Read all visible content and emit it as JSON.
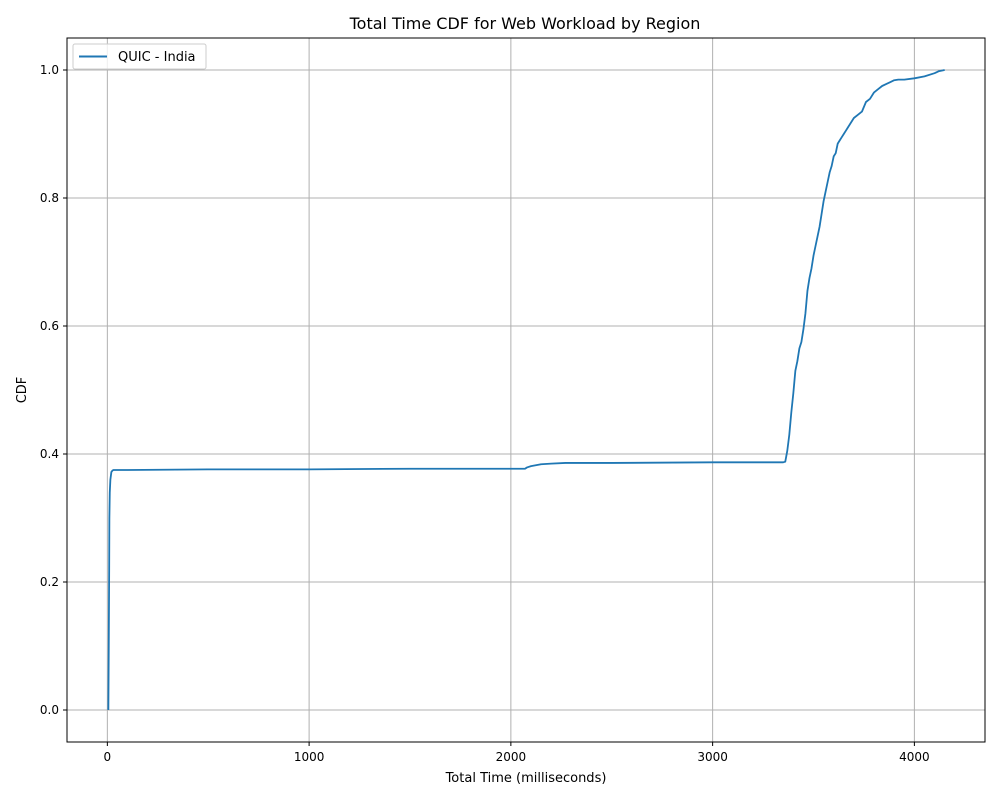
{
  "chart_data": {
    "type": "line",
    "title": "Total Time CDF for Web Workload by Region",
    "xlabel": "Total Time (milliseconds)",
    "ylabel": "CDF",
    "xlim": [
      -200,
      4350
    ],
    "ylim": [
      -0.05,
      1.05
    ],
    "xticks": [
      0,
      1000,
      2000,
      3000,
      4000
    ],
    "xtick_labels": [
      "0",
      "1000",
      "2000",
      "3000",
      "4000"
    ],
    "yticks": [
      0.0,
      0.2,
      0.4,
      0.6,
      0.8,
      1.0
    ],
    "ytick_labels": [
      "0.0",
      "0.2",
      "0.4",
      "0.6",
      "0.8",
      "1.0"
    ],
    "grid": true,
    "legend_position": "top-left",
    "series": [
      {
        "name": "QUIC - India",
        "color": "#1f77b4",
        "x": [
          5,
          7,
          9,
          10,
          12,
          15,
          20,
          25,
          30,
          100,
          500,
          1000,
          1500,
          2000,
          2070,
          2080,
          2100,
          2150,
          2200,
          2270,
          2500,
          3000,
          3350,
          3360,
          3370,
          3380,
          3390,
          3400,
          3410,
          3420,
          3430,
          3440,
          3450,
          3460,
          3470,
          3480,
          3490,
          3500,
          3510,
          3520,
          3530,
          3540,
          3550,
          3560,
          3570,
          3580,
          3590,
          3600,
          3610,
          3620,
          3630,
          3640,
          3650,
          3660,
          3670,
          3700,
          3720,
          3740,
          3760,
          3780,
          3800,
          3820,
          3840,
          3860,
          3880,
          3900,
          3920,
          3950,
          4000,
          4050,
          4100,
          4120,
          4150
        ],
        "y": [
          0.0,
          0.1,
          0.22,
          0.3,
          0.34,
          0.36,
          0.372,
          0.374,
          0.375,
          0.375,
          0.376,
          0.376,
          0.377,
          0.377,
          0.377,
          0.379,
          0.381,
          0.384,
          0.385,
          0.386,
          0.386,
          0.387,
          0.387,
          0.388,
          0.405,
          0.43,
          0.465,
          0.495,
          0.53,
          0.545,
          0.565,
          0.575,
          0.595,
          0.62,
          0.655,
          0.675,
          0.69,
          0.71,
          0.725,
          0.74,
          0.755,
          0.775,
          0.795,
          0.81,
          0.825,
          0.84,
          0.85,
          0.865,
          0.87,
          0.885,
          0.89,
          0.895,
          0.9,
          0.905,
          0.91,
          0.925,
          0.93,
          0.935,
          0.95,
          0.955,
          0.965,
          0.97,
          0.975,
          0.978,
          0.981,
          0.984,
          0.985,
          0.985,
          0.987,
          0.99,
          0.995,
          0.998,
          1.0
        ]
      }
    ]
  }
}
